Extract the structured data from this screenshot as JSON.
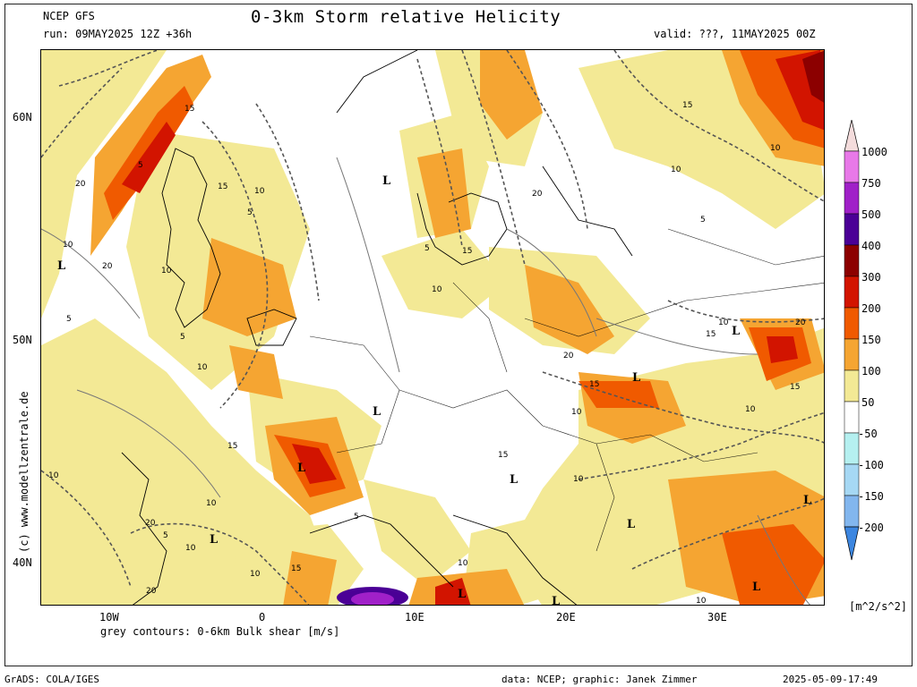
{
  "header": {
    "model": "NCEP GFS",
    "run": "run: 09MAY2025 12Z +36h",
    "title": "0-3km Storm relative Helicity",
    "valid": "valid: ???, 11MAY2025 00Z"
  },
  "map": {
    "lat_labels": [
      "60N",
      "50N",
      "40N"
    ],
    "lon_labels": [
      "10W",
      "0",
      "10E",
      "20E",
      "30E"
    ],
    "pressure_lows": [
      "L",
      "L",
      "L",
      "L",
      "L",
      "L",
      "L",
      "L",
      "L",
      "L",
      "L",
      "L",
      "L"
    ],
    "contour_labels": [
      "15",
      "20",
      "5",
      "10",
      "15",
      "10",
      "5",
      "10",
      "5",
      "10",
      "10",
      "5",
      "5",
      "10",
      "15",
      "20",
      "15",
      "20",
      "5",
      "10",
      "15",
      "10",
      "10",
      "5",
      "10",
      "5",
      "10",
      "15",
      "20",
      "10",
      "10",
      "15",
      "20",
      "15",
      "10",
      "10",
      "15",
      "10",
      "20",
      "10",
      "20",
      "15"
    ],
    "colorbar": {
      "levels": [
        "1000",
        "750",
        "500",
        "400",
        "300",
        "200",
        "150",
        "100",
        "50",
        "-50",
        "-100",
        "-150",
        "-200"
      ],
      "unit": "[m^2/s^2]",
      "colors": {
        "c1000": "#f4dcdc",
        "c750": "#e879e8",
        "c500": "#a020c8",
        "c400": "#4b0096",
        "c300": "#8c0000",
        "c200": "#d21400",
        "c150": "#f05a00",
        "c100": "#f5a532",
        "c50": "#f3e995",
        "cwhite": "#ffffff",
        "cn50": "#b5f0f0",
        "cn100": "#a6d8f4",
        "cn150": "#82b6ee",
        "cn200": "#3c86e0"
      }
    }
  },
  "footer": {
    "contour_note": "grey contours: 0-6km Bulk shear [m/s]",
    "watermark": "(c) www.modellzentrale.de",
    "grads": "GrADS: COLA/IGES",
    "credit": "data: NCEP; graphic: Janek Zimmer",
    "timestamp": "2025-05-09-17:49"
  }
}
